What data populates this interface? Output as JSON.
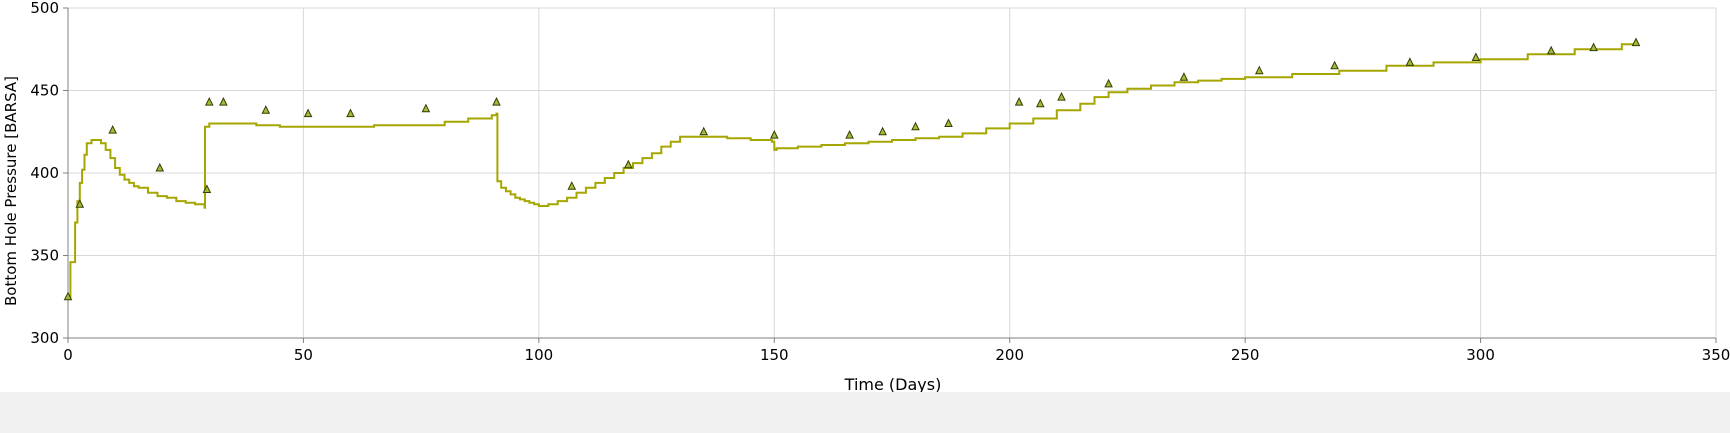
{
  "chart_data": {
    "type": "line",
    "xlabel": "Time (Days)",
    "ylabel": "Bottom Hole Pressure [BARSA]",
    "xlim": [
      0,
      350
    ],
    "ylim": [
      300,
      500
    ],
    "x_ticks": [
      "0",
      "50",
      "100",
      "150",
      "200",
      "250",
      "300",
      "350"
    ],
    "y_ticks": [
      "300",
      "350",
      "400",
      "450",
      "500"
    ],
    "grid": true,
    "legend": "none",
    "colors": {
      "line": "#a6a600",
      "marker_fill": "#9cbf3a",
      "marker_stroke": "#3a3a00",
      "grid": "#d9d9d9",
      "axis": "#808080"
    },
    "series": [
      {
        "type": "step-line",
        "x": [
          0,
          0.5,
          1.5,
          2,
          2.5,
          3,
          3.5,
          4,
          5,
          6,
          7,
          8,
          9,
          10,
          11,
          12,
          13,
          14,
          15,
          17,
          19,
          21,
          23,
          25,
          27,
          29,
          29.1,
          30,
          32,
          35,
          40,
          45,
          50,
          55,
          60,
          65,
          70,
          75,
          80,
          85,
          90,
          91,
          91.2,
          92,
          93,
          94,
          95,
          96,
          97,
          98,
          99,
          100,
          101,
          102,
          104,
          106,
          108,
          110,
          112,
          114,
          116,
          118,
          120,
          122,
          124,
          126,
          128,
          130,
          132,
          135,
          140,
          145,
          149.5,
          150,
          150.5,
          155,
          160,
          165,
          170,
          175,
          180,
          185,
          190,
          195,
          200,
          205,
          210,
          215,
          218,
          221,
          225,
          230,
          235,
          240,
          245,
          250,
          260,
          270,
          280,
          290,
          300,
          310,
          320,
          330,
          333
        ],
        "y": [
          325,
          346,
          370,
          383,
          394,
          402,
          411,
          418,
          420,
          420,
          418,
          414,
          409,
          403,
          399,
          396,
          394,
          392,
          391,
          388,
          386,
          385,
          383,
          382,
          381,
          379,
          428,
          430,
          430,
          430,
          429,
          428,
          428,
          428,
          428,
          429,
          429,
          429,
          431,
          433,
          435,
          436,
          395,
          391,
          389,
          387,
          385,
          384,
          383,
          382,
          381,
          380,
          380,
          381,
          383,
          385,
          388,
          391,
          394,
          397,
          400,
          403,
          406,
          409,
          412,
          416,
          419,
          422,
          422,
          422,
          421,
          420,
          419,
          414,
          415,
          416,
          417,
          418,
          419,
          420,
          421,
          422,
          424,
          427,
          430,
          433,
          438,
          442,
          446,
          449,
          451,
          453,
          455,
          456,
          457,
          458,
          460,
          462,
          465,
          467,
          469,
          472,
          475,
          478,
          479
        ]
      },
      {
        "type": "scatter",
        "marker": "triangle",
        "x": [
          0,
          2.5,
          9.5,
          19.5,
          29.5,
          30,
          33,
          42,
          51,
          60,
          76,
          91,
          107,
          119,
          135,
          150,
          166,
          173,
          180,
          187,
          202,
          206.5,
          211,
          221,
          237,
          253,
          269,
          285,
          299,
          315,
          324,
          333
        ],
        "y": [
          325,
          381,
          426,
          403,
          390,
          443,
          443,
          438,
          436,
          436,
          439,
          443,
          392,
          405,
          425,
          423,
          423,
          425,
          428,
          430,
          443,
          442,
          446,
          454,
          458,
          462,
          465,
          467,
          470,
          474,
          476,
          479
        ]
      }
    ]
  }
}
